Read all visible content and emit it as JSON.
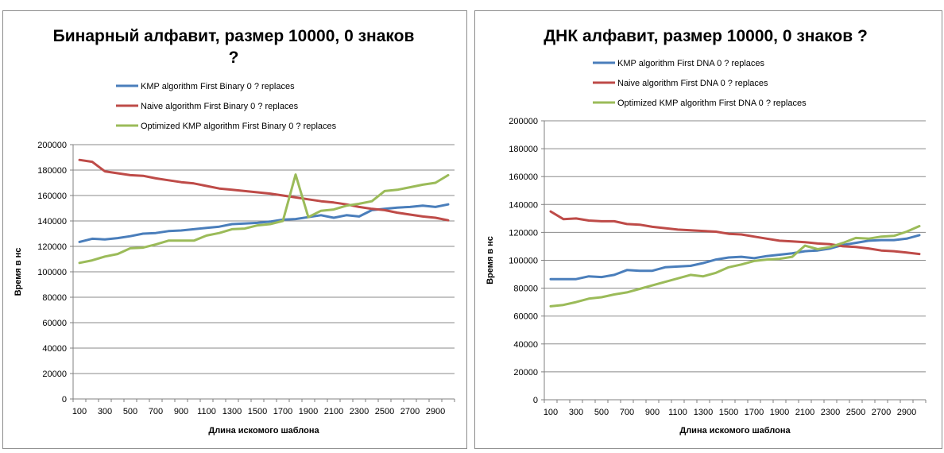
{
  "chart_data": [
    {
      "type": "line",
      "title_lines": [
        "Бинарный алфавит, размер 10000, 0 знаков",
        "?"
      ],
      "xlabel": "Длина искомого  шаблона",
      "ylabel": "Время в нс",
      "ylim": [
        0,
        200000
      ],
      "yticks": [
        0,
        20000,
        40000,
        60000,
        80000,
        100000,
        120000,
        140000,
        160000,
        180000,
        200000
      ],
      "categories": [
        "100",
        "200",
        "300",
        "400",
        "500",
        "600",
        "700",
        "800",
        "900",
        "1000",
        "1100",
        "1200",
        "1300",
        "1400",
        "1500",
        "1600",
        "1700",
        "1800",
        "1900",
        "2000",
        "2100",
        "2200",
        "2300",
        "2400",
        "2500",
        "2600",
        "2700",
        "2800",
        "2900",
        "3000"
      ],
      "xtick_labels": [
        "100",
        "300",
        "500",
        "700",
        "900",
        "1100",
        "1300",
        "1500",
        "1700",
        "1900",
        "2100",
        "2300",
        "2500",
        "2700",
        "2900"
      ],
      "grid": true,
      "legend_position": "top",
      "series": [
        {
          "name": "KMP algorithm First Binary 0 ? replaces",
          "color": "#4a7ebb",
          "values": [
            123500,
            126000,
            125500,
            126500,
            128000,
            130000,
            130500,
            132000,
            132500,
            133500,
            134500,
            135500,
            137500,
            138000,
            138500,
            139500,
            141000,
            141500,
            143000,
            144500,
            142500,
            144500,
            143500,
            148500,
            149500,
            150500,
            151000,
            152000,
            151000,
            153000
          ]
        },
        {
          "name": "Naive algorithm First Binary 0 ? replaces",
          "color": "#be4b48",
          "values": [
            188000,
            186500,
            179000,
            177500,
            176000,
            175500,
            173500,
            172000,
            170500,
            169500,
            167500,
            165500,
            164500,
            163500,
            162500,
            161500,
            160000,
            158500,
            157000,
            155500,
            154500,
            153000,
            151000,
            149500,
            148500,
            146500,
            145000,
            143500,
            142500,
            140500
          ]
        },
        {
          "name": "Optimized KMP algorithm First Binary 0 ? replaces",
          "color": "#9bbb59",
          "values": [
            107000,
            109000,
            112000,
            114000,
            118500,
            119000,
            121500,
            124500,
            124500,
            124500,
            128500,
            130500,
            133500,
            134000,
            136500,
            137500,
            140000,
            176500,
            143000,
            148000,
            149000,
            152000,
            153500,
            155500,
            163500,
            164500,
            166500,
            168500,
            170000,
            176000
          ]
        }
      ]
    },
    {
      "type": "line",
      "title_lines": [
        "ДНК алфавит, размер 10000, 0 знаков ?"
      ],
      "xlabel": "Длина искомого  шаблона",
      "ylabel": "Время в нс",
      "ylim": [
        0,
        200000
      ],
      "yticks": [
        0,
        20000,
        40000,
        60000,
        80000,
        100000,
        120000,
        140000,
        160000,
        180000,
        200000
      ],
      "categories": [
        "100",
        "200",
        "300",
        "400",
        "500",
        "600",
        "700",
        "800",
        "900",
        "1000",
        "1100",
        "1200",
        "1300",
        "1400",
        "1500",
        "1600",
        "1700",
        "1800",
        "1900",
        "2000",
        "2100",
        "2200",
        "2300",
        "2400",
        "2500",
        "2600",
        "2700",
        "2800",
        "2900",
        "3000"
      ],
      "xtick_labels": [
        "100",
        "300",
        "500",
        "700",
        "900",
        "1100",
        "1300",
        "1500",
        "1700",
        "1900",
        "2100",
        "2300",
        "2500",
        "2700",
        "2900"
      ],
      "grid": true,
      "legend_position": "top",
      "series": [
        {
          "name": "KMP algorithm First DNA 0 ? replaces",
          "color": "#4a7ebb",
          "values": [
            86500,
            86500,
            86500,
            88500,
            88000,
            89500,
            93000,
            92500,
            92500,
            95000,
            95500,
            96000,
            98000,
            100500,
            102000,
            102500,
            101500,
            103000,
            104000,
            105000,
            106500,
            107000,
            108500,
            111000,
            112500,
            114000,
            114500,
            114500,
            115500,
            118000
          ]
        },
        {
          "name": "Naive algorithm First DNA 0 ? replaces",
          "color": "#be4b48",
          "values": [
            135000,
            129500,
            130000,
            128500,
            128000,
            128000,
            126000,
            125500,
            124000,
            123000,
            122000,
            121500,
            121000,
            120500,
            119000,
            118500,
            117000,
            115500,
            114000,
            113500,
            113000,
            112000,
            111500,
            110000,
            109500,
            108500,
            107000,
            106500,
            105500,
            104500
          ]
        },
        {
          "name": "Optimized KMP algorithm First DNA 0 ? replaces",
          "color": "#9bbb59",
          "values": [
            67000,
            68000,
            70000,
            72500,
            73500,
            75500,
            77000,
            79500,
            82000,
            84500,
            87000,
            89500,
            88500,
            91000,
            95000,
            97000,
            99500,
            100500,
            101000,
            102500,
            110500,
            108000,
            109500,
            112500,
            116000,
            115500,
            117000,
            117500,
            120500,
            124500
          ]
        }
      ]
    }
  ]
}
